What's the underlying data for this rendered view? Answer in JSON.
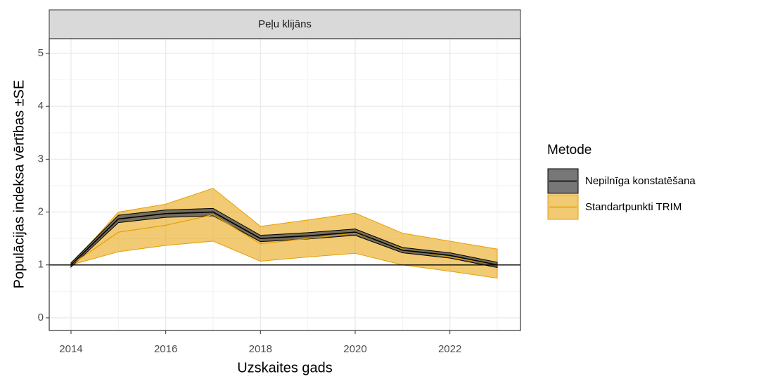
{
  "chart_data": {
    "type": "line",
    "strip_title": "Peļu klijāns",
    "x_label": "Uzskaites gads",
    "y_label": "Populācijas indeksa vērtības ±SE",
    "legend_title": "Metode",
    "x": [
      2014,
      2015,
      2016,
      2017,
      2018,
      2019,
      2020,
      2021,
      2022,
      2023
    ],
    "series": [
      {
        "name": "Nepilnīga konstatēšana",
        "color": "#000000",
        "ribbon_color": "#555555",
        "values": [
          1.0,
          1.87,
          1.97,
          2.0,
          1.5,
          1.55,
          1.62,
          1.28,
          1.18,
          1.0
        ],
        "lower": [
          0.96,
          1.8,
          1.9,
          1.93,
          1.44,
          1.49,
          1.56,
          1.23,
          1.13,
          0.95
        ],
        "upper": [
          1.04,
          1.94,
          2.04,
          2.07,
          1.56,
          1.61,
          1.68,
          1.33,
          1.23,
          1.05
        ]
      },
      {
        "name": "Standartpunkti TRIM",
        "color": "#E69F00",
        "ribbon_color": "#E69F00",
        "values": [
          1.0,
          1.62,
          1.75,
          1.95,
          1.4,
          1.5,
          1.6,
          1.3,
          1.15,
          1.0
        ],
        "lower": [
          1.0,
          1.25,
          1.37,
          1.45,
          1.07,
          1.15,
          1.22,
          1.0,
          0.88,
          0.75
        ],
        "upper": [
          1.0,
          2.0,
          2.15,
          2.45,
          1.73,
          1.85,
          1.98,
          1.6,
          1.45,
          1.3
        ]
      }
    ],
    "hline": 1,
    "xlim": [
      2013.54,
      2023.49
    ],
    "xticks": [
      2014,
      2016,
      2018,
      2020,
      2022
    ],
    "ylim": [
      -0.24,
      5.28
    ],
    "yticks": [
      0,
      1,
      2,
      3,
      4,
      5
    ],
    "grid": true,
    "legend_position": "right"
  }
}
